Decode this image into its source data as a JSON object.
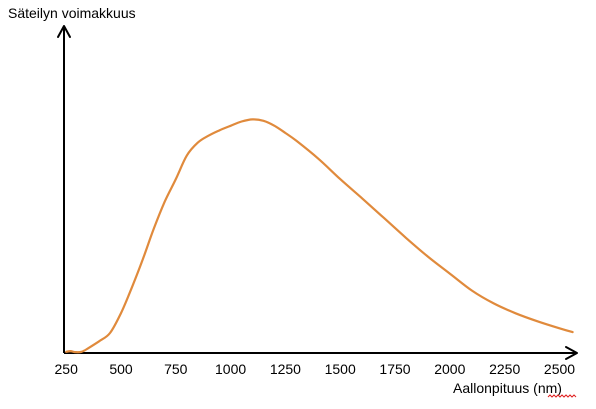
{
  "chart_data": {
    "type": "line",
    "title": "",
    "ylabel": "Säteilyn voimakkuus",
    "xlabel": "Aallonpituus (nm)",
    "xlim": [
      240,
      2580
    ],
    "ylim": [
      0,
      100
    ],
    "y_tick_labels_shown": false,
    "grid": false,
    "legend": "none",
    "x_ticks": [
      250,
      500,
      750,
      1000,
      1250,
      1500,
      1750,
      2000,
      2250,
      2500
    ],
    "series": [
      {
        "color": "#e08a3c",
        "x": [
          250,
          270,
          290,
          320,
          350,
          400,
          450,
          500,
          550,
          600,
          650,
          700,
          750,
          800,
          850,
          900,
          950,
          1000,
          1050,
          1100,
          1150,
          1200,
          1250,
          1300,
          1400,
          1500,
          1600,
          1700,
          1800,
          1900,
          2000,
          2100,
          2200,
          2300,
          2400,
          2500,
          2560
        ],
        "y": [
          0.5,
          0.8,
          0.4,
          0.5,
          2,
          5,
          8.5,
          17,
          28,
          40,
          53,
          64.5,
          74,
          84,
          89.5,
          92.5,
          94.8,
          96.7,
          98.5,
          99.4,
          98.8,
          96.7,
          93.6,
          90.3,
          82.7,
          74,
          65.8,
          57.4,
          49,
          41,
          33.8,
          26.6,
          21.1,
          16.9,
          13.5,
          10.5,
          8.9
        ]
      }
    ]
  }
}
